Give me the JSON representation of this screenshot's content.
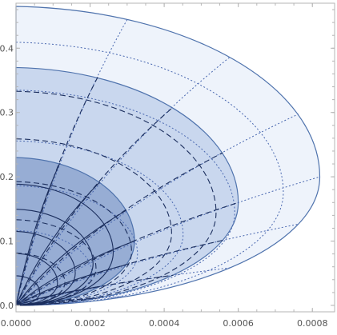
{
  "chart_data": {
    "type": "area",
    "title": "",
    "xlabel": "",
    "ylabel": "",
    "xlim": [
      0,
      0.00086
    ],
    "ylim": [
      -0.01,
      0.47
    ],
    "grid": false,
    "x_ticks": [
      "0.0000",
      "0.0002",
      "0.0004",
      "0.0006",
      "0.0008"
    ],
    "x_tick_values": [
      0,
      0.0002,
      0.0004,
      0.0006,
      0.0008
    ],
    "y_ticks": [
      "0.0",
      "0.1",
      "0.2",
      "0.3",
      "0.4"
    ],
    "y_tick_values": [
      0,
      0.1,
      0.2,
      0.3,
      0.4
    ],
    "colors": {
      "edge": "#4f73ad",
      "grid_dark": "#1c2f5e",
      "grid_light": "#4a68b0",
      "fill_outer": "#eef3fb",
      "fill_middle": "#c9d7ee",
      "fill_inner": "#97add4"
    },
    "series": [
      {
        "region": "outer",
        "x_max": 0.00082,
        "y_max": 0.465,
        "y_at_x_max": 0.2,
        "grid_style": "dotted",
        "fill": "#eef3fb",
        "radial_levels": [
          0.25,
          0.4,
          0.55,
          0.72,
          0.88
        ],
        "ray_params": [
          0.12,
          0.25,
          0.38,
          0.5,
          0.62,
          0.75,
          0.88
        ]
      },
      {
        "region": "middle",
        "x_max": 0.0006,
        "y_max": 0.37,
        "y_at_x_max": 0.16,
        "grid_style": "dashed",
        "fill": "#c9d7ee",
        "radial_levels": [
          0.22,
          0.36,
          0.52,
          0.7,
          0.9
        ],
        "ray_params": [
          0.12,
          0.25,
          0.38,
          0.5,
          0.62,
          0.75,
          0.88
        ]
      },
      {
        "region": "inner",
        "x_max": 0.00032,
        "y_max": 0.23,
        "y_at_x_max": 0.1,
        "grid_style": "solid",
        "fill": "#97add4",
        "radial_levels": [
          0.2,
          0.35,
          0.5,
          0.65,
          0.82
        ],
        "ray_params": [
          0.12,
          0.25,
          0.38,
          0.5,
          0.62,
          0.75,
          0.88
        ]
      }
    ]
  }
}
